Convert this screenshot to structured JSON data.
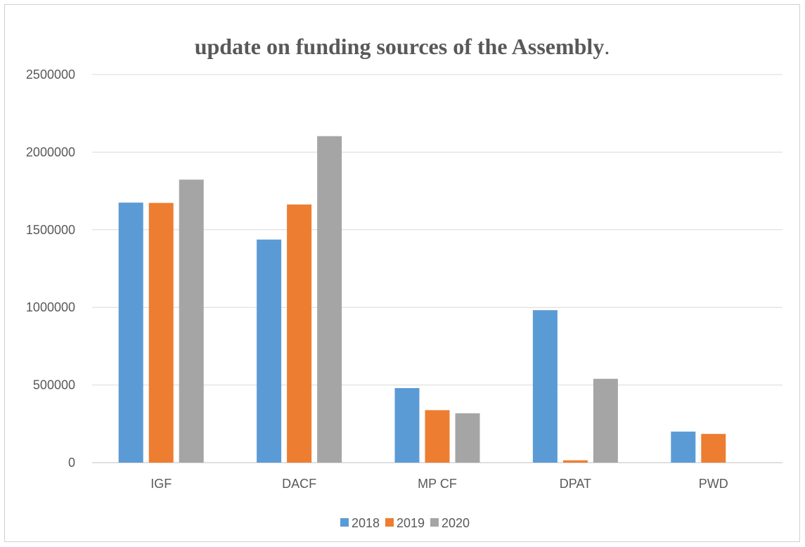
{
  "chart_data": {
    "type": "bar",
    "title": "update on funding sources of the Assembly",
    "title_suffix": ".",
    "categories": [
      "IGF",
      "DACF",
      "MP CF",
      "DPAT",
      "PWD"
    ],
    "series": [
      {
        "name": "2018",
        "color": "#5b9bd5",
        "values": [
          1675000,
          1437000,
          480000,
          982000,
          200000
        ]
      },
      {
        "name": "2019",
        "color": "#ed7d31",
        "values": [
          1673000,
          1663000,
          338000,
          15000,
          185000
        ]
      },
      {
        "name": "2020",
        "color": "#a5a5a5",
        "values": [
          1823000,
          2103000,
          318000,
          540000,
          0
        ]
      }
    ],
    "ylim": [
      0,
      2500000
    ],
    "yticks": [
      "0",
      "500000",
      "1000000",
      "1500000",
      "2000000",
      "2500000"
    ],
    "grid": true,
    "legend_position": "bottom"
  }
}
